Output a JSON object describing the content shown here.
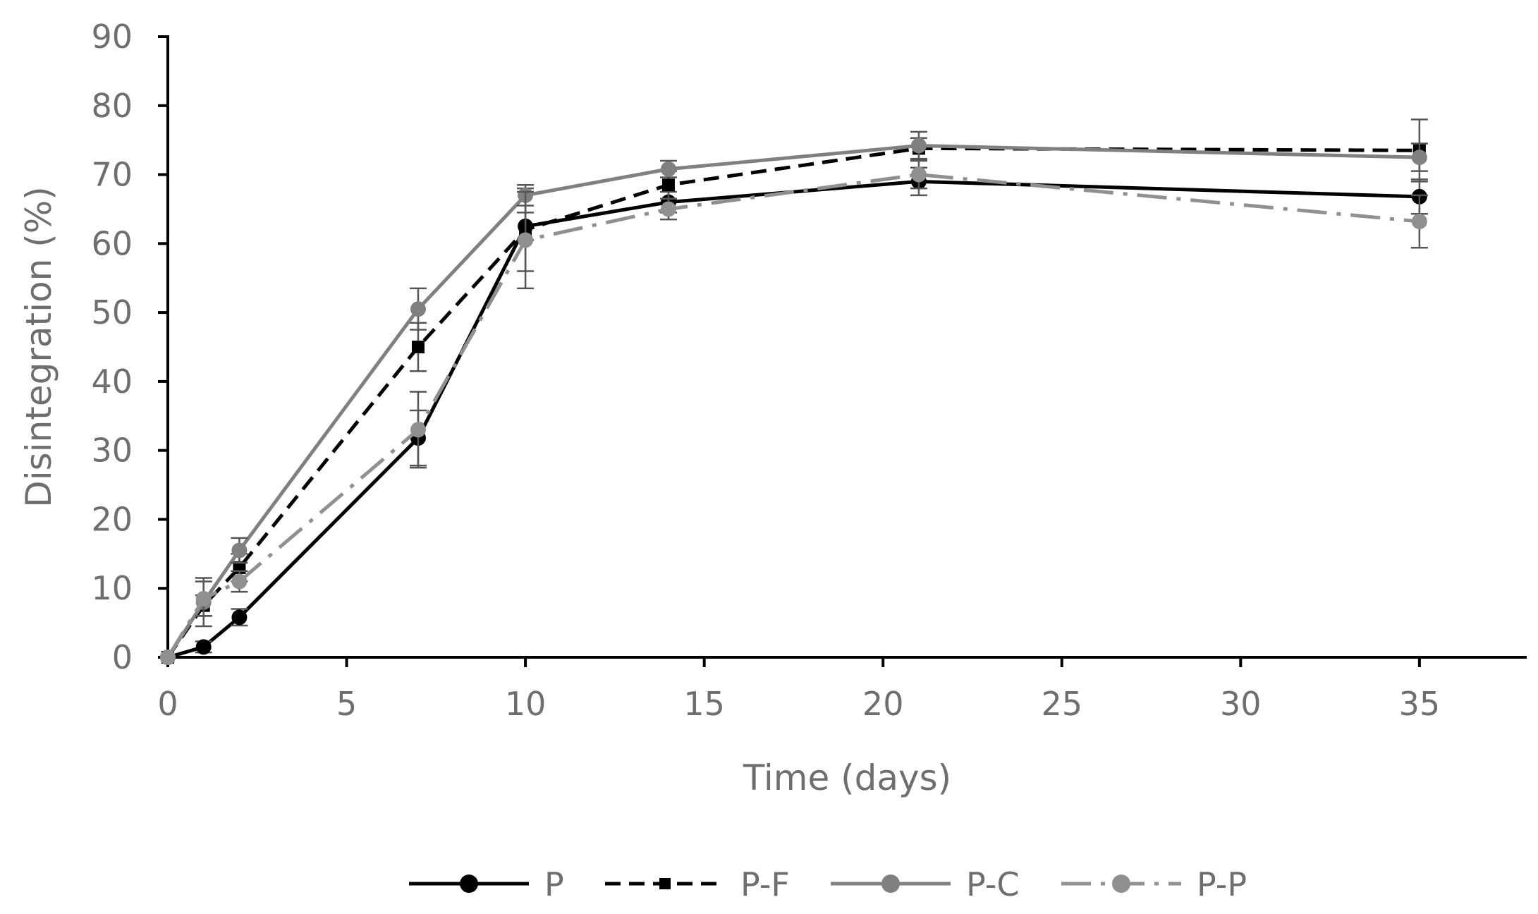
{
  "chart_data": {
    "type": "line",
    "title": "",
    "xlabel": "Time (days)",
    "ylabel": "Disintegration (%)",
    "xlim": [
      0,
      38
    ],
    "ylim": [
      0,
      90
    ],
    "xticks": [
      0,
      5,
      10,
      15,
      20,
      25,
      30,
      35
    ],
    "yticks": [
      0,
      10,
      20,
      30,
      40,
      50,
      60,
      70,
      80,
      90
    ],
    "grid": false,
    "legend_position": "bottom",
    "x": [
      0,
      1,
      2,
      7,
      10,
      14,
      21,
      35
    ],
    "series": [
      {
        "name": "P",
        "color": "#000000",
        "dash": "solid",
        "marker": "circle",
        "values": [
          0,
          1.5,
          5.8,
          31.8,
          62.5,
          66.0,
          69.0,
          66.8
        ],
        "errors": [
          0,
          0.8,
          1.2,
          4.0,
          2.0,
          1.5,
          2.0,
          2.5
        ]
      },
      {
        "name": "P-F",
        "color": "#000000",
        "dash": "dash",
        "marker": "square",
        "values": [
          0,
          7.5,
          13.0,
          45.0,
          62.0,
          68.5,
          73.8,
          73.5
        ],
        "errors": [
          0,
          1.5,
          2.0,
          3.5,
          6.0,
          2.0,
          1.5,
          4.5
        ]
      },
      {
        "name": "P-C",
        "color": "#808080",
        "dash": "solid",
        "marker": "circle",
        "values": [
          0,
          8.0,
          15.5,
          50.5,
          67.0,
          70.8,
          74.2,
          72.5
        ],
        "errors": [
          0,
          3.5,
          1.8,
          3.0,
          1.5,
          1.2,
          2.0,
          2.0
        ]
      },
      {
        "name": "P-P",
        "color": "#909090",
        "dash": "dashdot",
        "marker": "circle",
        "values": [
          0,
          8.5,
          11.0,
          33.0,
          60.5,
          65.0,
          70.0,
          63.2
        ],
        "errors": [
          0,
          2.5,
          1.5,
          5.5,
          7.0,
          1.5,
          2.0,
          3.8
        ]
      }
    ]
  }
}
